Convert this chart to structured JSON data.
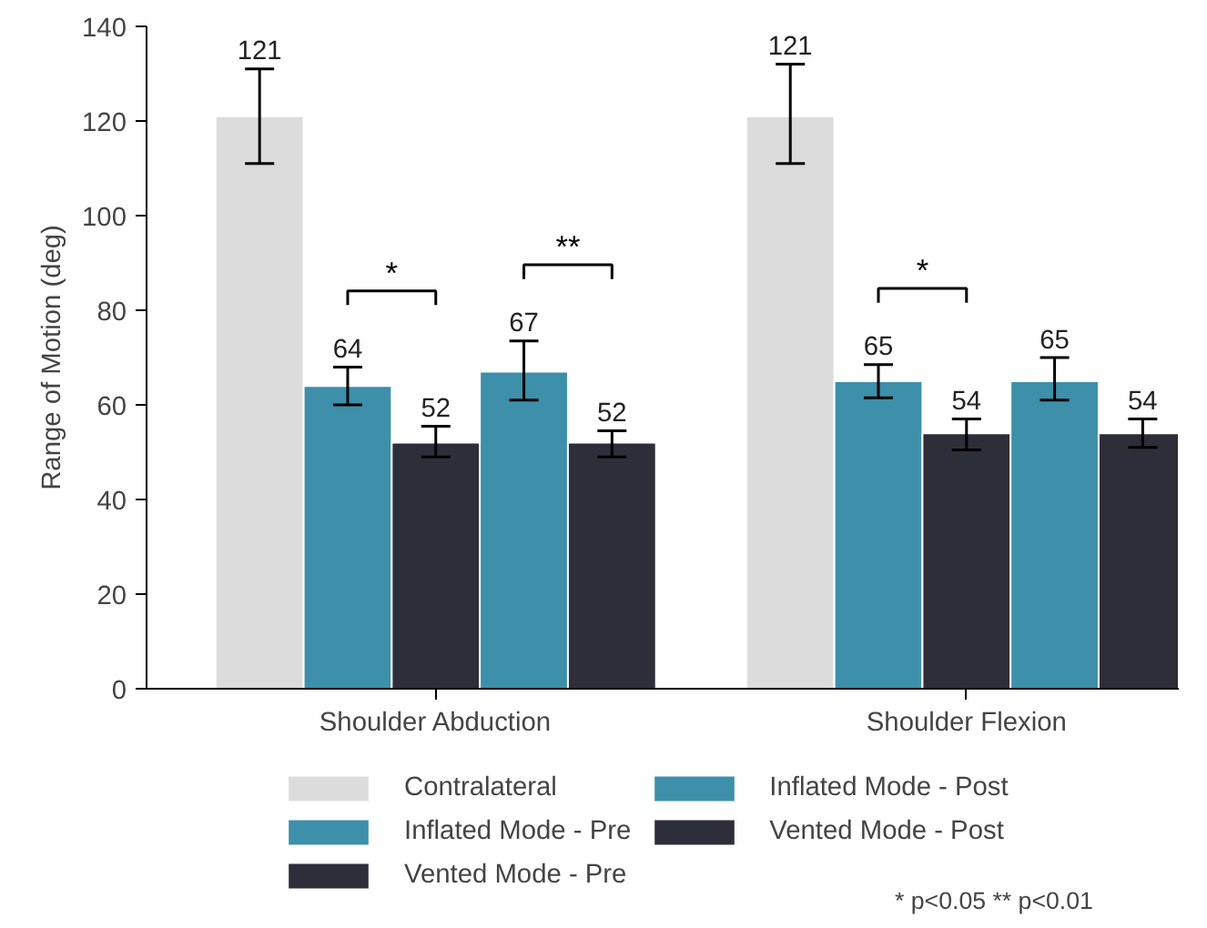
{
  "chart_data": {
    "type": "bar",
    "ylabel": "Range of Motion (deg)",
    "categories": [
      "Shoulder Abduction",
      "Shoulder Flexion"
    ],
    "series": [
      {
        "name": "Contralateral",
        "color": "#dcdcdc",
        "values": [
          121,
          121
        ],
        "errors": [
          [
            111,
            131
          ],
          [
            111,
            132
          ]
        ]
      },
      {
        "name": "Inflated Mode - Pre",
        "color": "#3d8faa",
        "values": [
          64,
          65
        ],
        "errors": [
          [
            60,
            68
          ],
          [
            61.5,
            68.5
          ]
        ]
      },
      {
        "name": "Vented Mode - Pre",
        "color": "#2e2e3a",
        "values": [
          52,
          54
        ],
        "errors": [
          [
            49,
            55.5
          ],
          [
            50.5,
            57
          ]
        ]
      },
      {
        "name": "Inflated Mode - Post",
        "color": "#3d8faa",
        "values": [
          67,
          65
        ],
        "errors": [
          [
            61,
            73.5
          ],
          [
            61,
            70
          ]
        ]
      },
      {
        "name": "Vented Mode - Post",
        "color": "#2e2e3a",
        "values": [
          52,
          54
        ],
        "errors": [
          [
            49,
            54.5
          ],
          [
            51,
            57
          ]
        ]
      }
    ],
    "data_labels": true,
    "ylim": [
      0,
      140
    ],
    "yticks": [
      0,
      20,
      40,
      60,
      80,
      100,
      120,
      140
    ],
    "grid": false,
    "legend": "bottom",
    "annotations": [
      "*",
      "**",
      "*",
      "* p<0.05   ** p<0.01"
    ]
  }
}
